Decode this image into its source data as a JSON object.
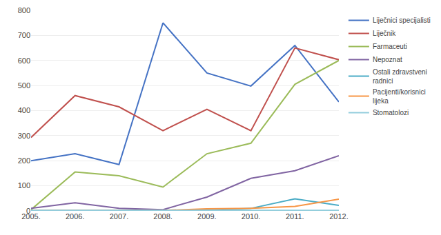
{
  "chart_data": {
    "type": "line",
    "categories": [
      "2005.",
      "2006.",
      "2007.",
      "2008.",
      "2009.",
      "2010.",
      "2011.",
      "2012."
    ],
    "series": [
      {
        "name": "Liječnici specijalisti",
        "color": "#4472C4",
        "values": [
          200,
          228,
          185,
          750,
          550,
          498,
          660,
          435
        ]
      },
      {
        "name": "Liječnik",
        "color": "#C0504D",
        "values": [
          293,
          460,
          415,
          320,
          405,
          320,
          650,
          603
        ]
      },
      {
        "name": "Farmaceuti",
        "color": "#9BBB59",
        "values": [
          5,
          155,
          140,
          95,
          228,
          270,
          505,
          600
        ]
      },
      {
        "name": "Nepoznat",
        "color": "#8064A2",
        "values": [
          10,
          32,
          10,
          5,
          55,
          130,
          160,
          220
        ]
      },
      {
        "name": "Ostali zdravstveni\nradnici",
        "color": "#4BACC6",
        "values": [
          2,
          2,
          2,
          2,
          3,
          10,
          48,
          22
        ]
      },
      {
        "name": "Pacijenti/korisnici\nlijeka",
        "color": "#F79646",
        "values": [
          2,
          2,
          2,
          2,
          8,
          10,
          18,
          47
        ]
      },
      {
        "name": "Stomatolozi",
        "color": "#92CDDC",
        "values": [
          2,
          2,
          2,
          2,
          2,
          2,
          2,
          2
        ]
      }
    ],
    "ylim": [
      0,
      800
    ],
    "yticks": [
      0,
      100,
      200,
      300,
      400,
      500,
      600,
      700,
      800
    ],
    "grid": true,
    "legend": "right"
  }
}
